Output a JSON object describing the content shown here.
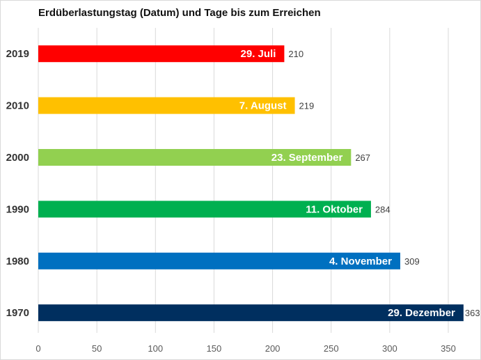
{
  "chart_data": {
    "type": "bar",
    "orientation": "horizontal",
    "title": "Erdüberlastungstag (Datum) und Tage bis zum Erreichen",
    "xlabel": "",
    "ylabel": "",
    "xlim": [
      0,
      360
    ],
    "x_ticks": [
      0,
      50,
      100,
      150,
      200,
      250,
      300,
      350
    ],
    "grid": true,
    "legend": "none",
    "categories": [
      "2019",
      "2010",
      "2000",
      "1990",
      "1980",
      "1970"
    ],
    "values": [
      210,
      219,
      267,
      284,
      309,
      363
    ],
    "bar_labels": [
      "29. Juli",
      "7. August",
      "23. September",
      "11. Oktober",
      "4. November",
      "29. Dezember"
    ],
    "colors": [
      "#ff0000",
      "#ffc000",
      "#92d050",
      "#00b050",
      "#0070c0",
      "#002f5f"
    ]
  }
}
